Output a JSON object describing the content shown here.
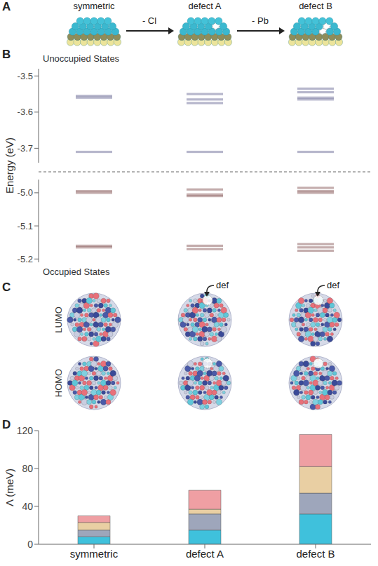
{
  "panel_letters": [
    "A",
    "B",
    "C",
    "D"
  ],
  "structures": {
    "labels": [
      "symmetric",
      "defect A",
      "defect B"
    ],
    "steps": [
      "- Cl",
      "- Pb"
    ]
  },
  "orbitals": {
    "rows": [
      "LUMO",
      "HOMO"
    ],
    "annotations": [
      null,
      "def",
      "def"
    ]
  },
  "chart_data": [
    {
      "type": "levels",
      "y_label": "Energy (eV)",
      "tick_labels": "y",
      "panels": [
        {
          "title": "Unoccupied States",
          "color": "#6f6f9a",
          "ylim": [
            -3.74,
            -3.48
          ],
          "yticks": [
            -3.5,
            -3.6,
            -3.7
          ],
          "levels": [
            [
              -3.555,
              -3.56,
              -3.71
            ],
            [
              -3.55,
              -3.565,
              -3.575,
              -3.71
            ],
            [
              -3.535,
              -3.545,
              -3.56,
              -3.565,
              -3.71
            ]
          ]
        },
        {
          "title": "Occupied States",
          "color": "#8a5c5c",
          "ylim": [
            -5.21,
            -4.96
          ],
          "yticks": [
            {
              "value": -5,
              "label": "-5.0"
            },
            -5.1,
            -5.2
          ],
          "levels": [
            [
              -4.995,
              -5.0,
              -5.16,
              -5.165
            ],
            [
              -4.99,
              -5.005,
              -5.01,
              -5.16,
              -5.17
            ],
            [
              -4.985,
              -4.995,
              -5.0,
              -5.155,
              -5.165,
              -5.175
            ]
          ]
        }
      ]
    },
    {
      "type": "bar",
      "stacked": true,
      "y_label": "Λ (meV)",
      "categories": [
        "symmetric",
        "defect A",
        "defect B"
      ],
      "ylim": [
        0,
        120
      ],
      "yticks": [
        0,
        40,
        80,
        120
      ],
      "series": [
        {
          "color": "#3fc1dc",
          "values": [
            8,
            15,
            32
          ]
        },
        {
          "color": "#9ea6bb",
          "values": [
            7,
            17,
            22
          ]
        },
        {
          "color": "#e9cfa3",
          "values": [
            8,
            5,
            28
          ]
        },
        {
          "color": "#ef9fa3",
          "values": [
            7,
            20,
            34
          ]
        }
      ]
    }
  ]
}
